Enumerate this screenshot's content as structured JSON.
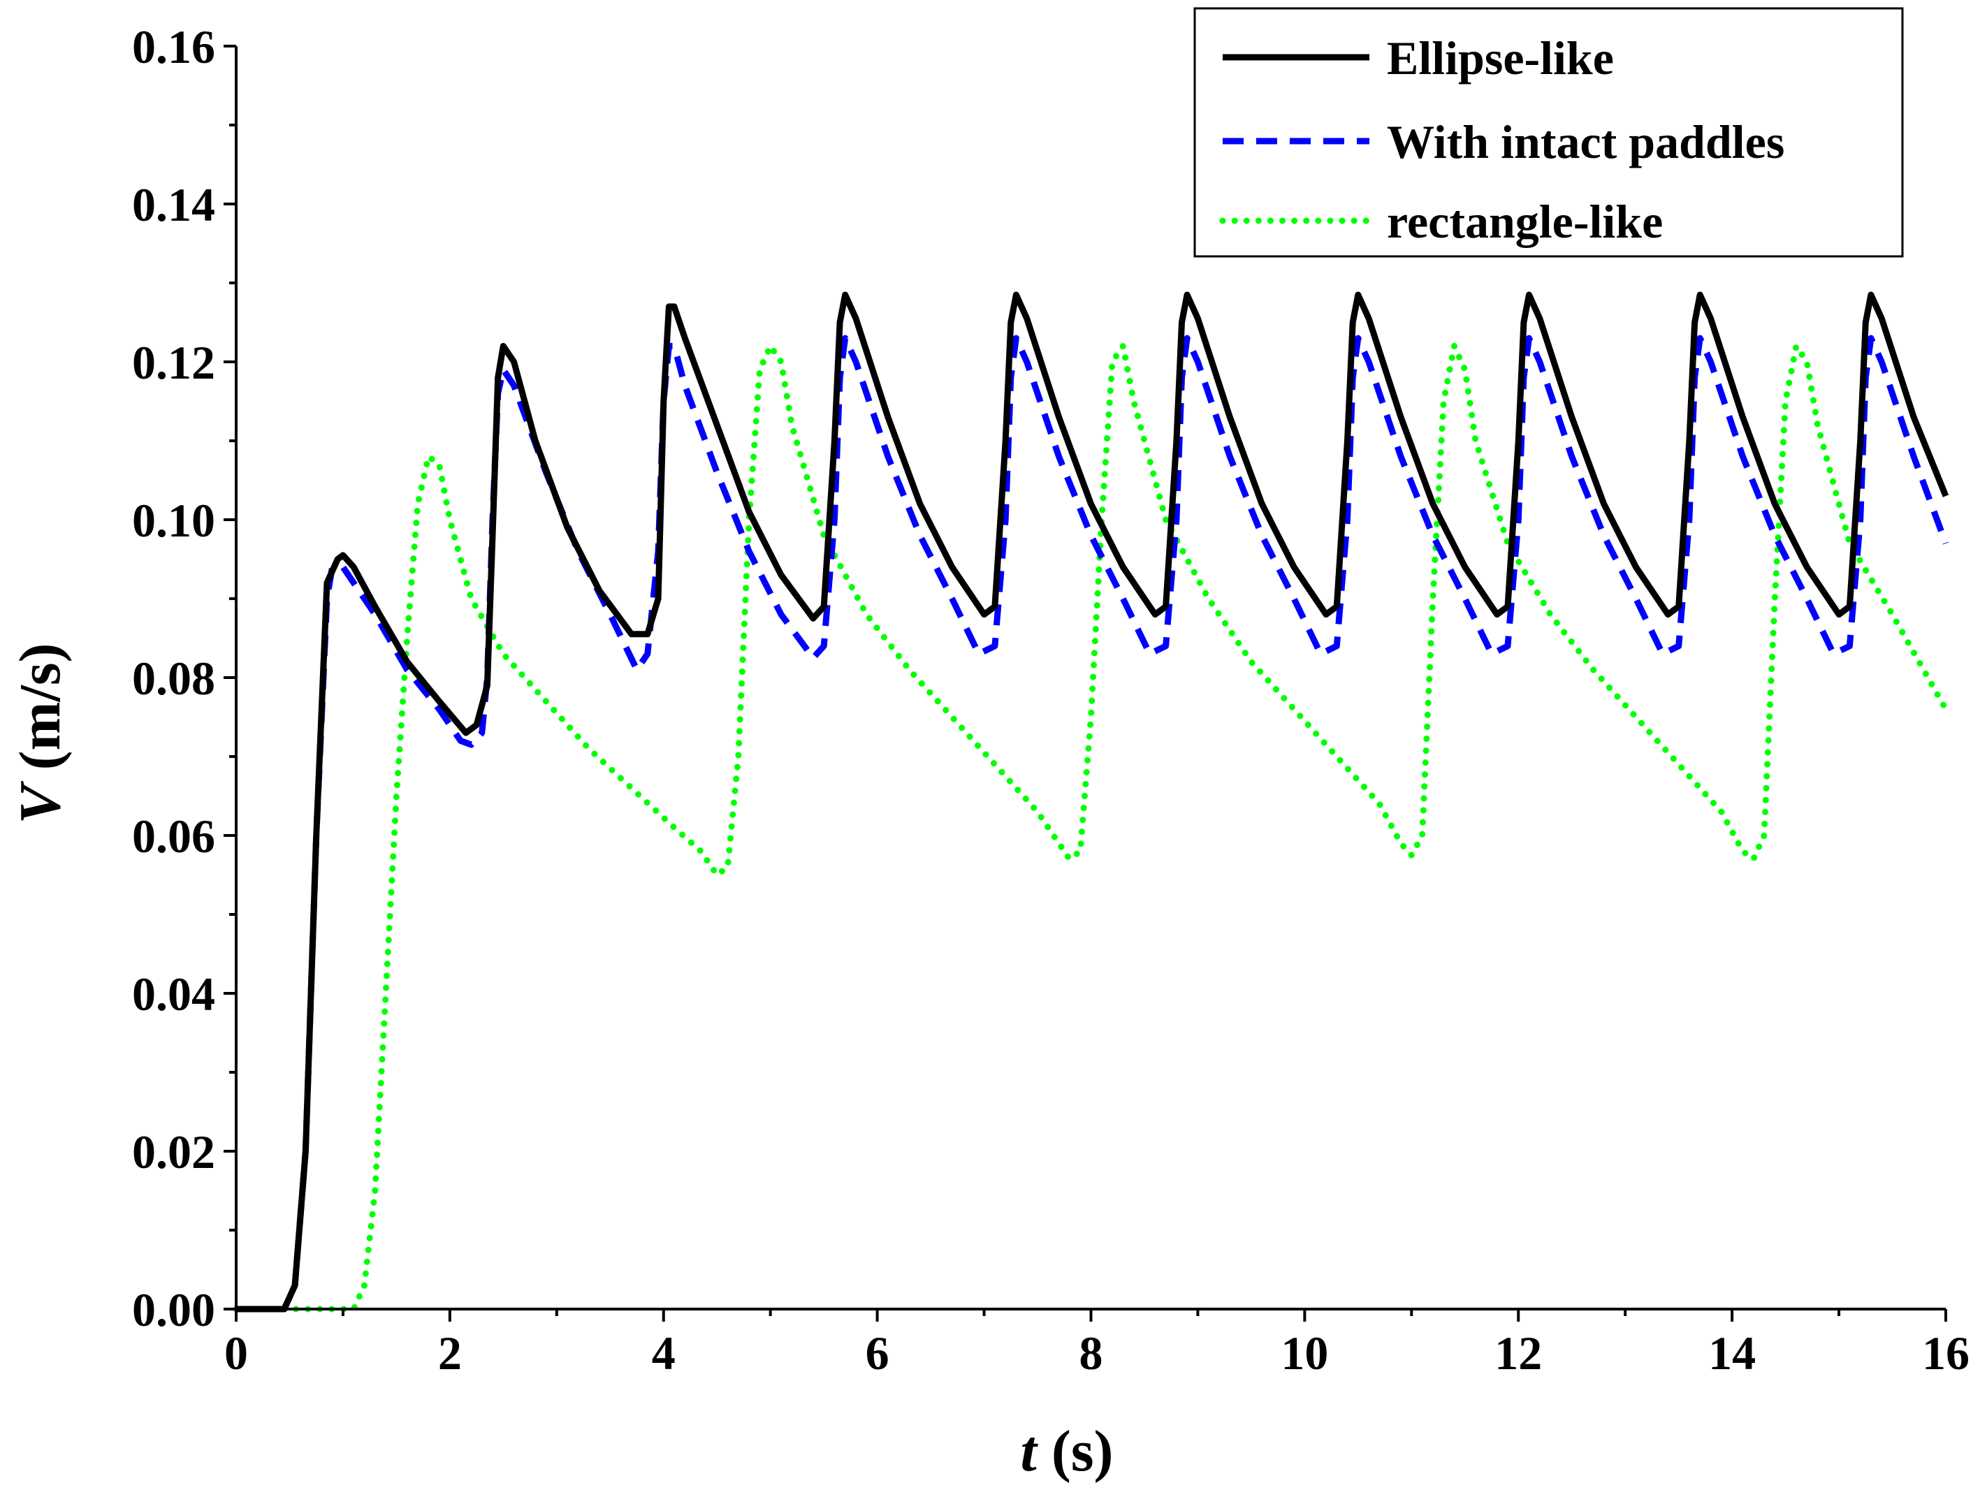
{
  "chart_data": {
    "type": "line",
    "title": "",
    "xlabel": {
      "symbol": "t",
      "unit": " (s)"
    },
    "ylabel": {
      "symbol": "V",
      "unit": " (m/s)"
    },
    "xlim": [
      0,
      16
    ],
    "ylim": [
      0,
      0.16
    ],
    "xticks": [
      "0",
      "2",
      "4",
      "6",
      "8",
      "10",
      "12",
      "14",
      "16"
    ],
    "xtick_values": [
      0,
      2,
      4,
      6,
      8,
      10,
      12,
      14,
      16
    ],
    "yticks": [
      "0.00",
      "0.02",
      "0.04",
      "0.06",
      "0.08",
      "0.10",
      "0.12",
      "0.14",
      "0.16"
    ],
    "ytick_values": [
      0,
      0.02,
      0.04,
      0.06,
      0.08,
      0.1,
      0.12,
      0.14,
      0.16
    ],
    "grid": false,
    "legend_position": "top-right",
    "series": [
      {
        "name": "Ellipse-like",
        "color": "#000000",
        "style": "solid",
        "x": [
          0,
          0.45,
          0.55,
          0.65,
          0.75,
          0.85,
          0.95,
          1.0,
          1.1,
          1.3,
          1.6,
          1.9,
          2.15,
          2.25,
          2.35,
          2.4,
          2.45,
          2.5,
          2.6,
          2.8,
          3.1,
          3.4,
          3.7,
          3.85,
          3.95,
          4.0,
          4.05,
          4.1,
          4.2,
          4.5,
          4.8,
          5.1,
          5.4,
          5.5,
          5.6,
          5.65,
          5.7,
          5.8,
          6.1,
          6.4,
          6.7,
          7.0,
          7.1,
          7.2,
          7.25,
          7.3,
          7.4,
          7.7,
          8.0,
          8.3,
          8.6,
          8.7,
          8.8,
          8.85,
          8.9,
          9.0,
          9.3,
          9.6,
          9.9,
          10.2,
          10.3,
          10.4,
          10.45,
          10.5,
          10.6,
          10.9,
          11.2,
          11.5,
          11.8,
          11.9,
          12.0,
          12.05,
          12.1,
          12.2,
          12.5,
          12.8,
          13.1,
          13.4,
          13.5,
          13.6,
          13.65,
          13.7,
          13.8,
          14.1,
          14.4,
          14.7,
          15.0,
          15.1,
          15.2,
          15.25,
          15.3,
          15.4,
          15.7,
          16.0
        ],
        "values": [
          0,
          0,
          0.003,
          0.02,
          0.06,
          0.092,
          0.095,
          0.0955,
          0.094,
          0.089,
          0.082,
          0.077,
          0.073,
          0.074,
          0.079,
          0.098,
          0.118,
          0.122,
          0.12,
          0.11,
          0.099,
          0.091,
          0.0855,
          0.0855,
          0.09,
          0.115,
          0.127,
          0.127,
          0.123,
          0.112,
          0.101,
          0.093,
          0.0875,
          0.089,
          0.11,
          0.125,
          0.1285,
          0.1255,
          0.113,
          0.102,
          0.094,
          0.088,
          0.089,
          0.11,
          0.125,
          0.1285,
          0.1255,
          0.113,
          0.102,
          0.094,
          0.088,
          0.089,
          0.11,
          0.125,
          0.1285,
          0.1255,
          0.113,
          0.102,
          0.094,
          0.088,
          0.089,
          0.11,
          0.125,
          0.1285,
          0.1255,
          0.113,
          0.102,
          0.094,
          0.088,
          0.089,
          0.11,
          0.125,
          0.1285,
          0.1255,
          0.113,
          0.102,
          0.094,
          0.088,
          0.089,
          0.11,
          0.125,
          0.1285,
          0.1255,
          0.113,
          0.102,
          0.094,
          0.088,
          0.089,
          0.11,
          0.125,
          0.1285,
          0.1255,
          0.113,
          0.103
        ]
      },
      {
        "name": "With intact paddles",
        "color": "#0000ff",
        "style": "dashed",
        "x": [
          0,
          0.45,
          0.55,
          0.65,
          0.75,
          0.85,
          0.9,
          1.0,
          1.3,
          1.6,
          1.9,
          2.1,
          2.2,
          2.3,
          2.35,
          2.4,
          2.45,
          2.5,
          2.6,
          2.9,
          3.2,
          3.5,
          3.75,
          3.85,
          3.95,
          4.0,
          4.05,
          4.1,
          4.2,
          4.5,
          4.8,
          5.1,
          5.4,
          5.5,
          5.6,
          5.65,
          5.7,
          5.8,
          6.1,
          6.4,
          6.7,
          6.95,
          7.1,
          7.2,
          7.25,
          7.3,
          7.4,
          7.7,
          8.0,
          8.3,
          8.55,
          8.7,
          8.8,
          8.85,
          8.9,
          9.0,
          9.3,
          9.6,
          9.9,
          10.15,
          10.3,
          10.4,
          10.45,
          10.5,
          10.6,
          10.9,
          11.2,
          11.5,
          11.75,
          11.9,
          12.0,
          12.05,
          12.1,
          12.2,
          12.5,
          12.8,
          13.1,
          13.35,
          13.5,
          13.6,
          13.65,
          13.7,
          13.8,
          14.1,
          14.4,
          14.7,
          14.95,
          15.1,
          15.2,
          15.25,
          15.3,
          15.4,
          15.7,
          16.0
        ],
        "values": [
          0,
          0,
          0.003,
          0.02,
          0.06,
          0.09,
          0.094,
          0.094,
          0.088,
          0.081,
          0.076,
          0.072,
          0.0715,
          0.073,
          0.08,
          0.1,
          0.116,
          0.119,
          0.117,
          0.106,
          0.096,
          0.088,
          0.081,
          0.083,
          0.096,
          0.115,
          0.122,
          0.122,
          0.117,
          0.106,
          0.096,
          0.088,
          0.0825,
          0.084,
          0.1,
          0.118,
          0.123,
          0.12,
          0.108,
          0.098,
          0.09,
          0.083,
          0.084,
          0.1,
          0.118,
          0.123,
          0.12,
          0.108,
          0.098,
          0.09,
          0.083,
          0.084,
          0.1,
          0.118,
          0.123,
          0.12,
          0.108,
          0.098,
          0.09,
          0.083,
          0.084,
          0.1,
          0.118,
          0.123,
          0.12,
          0.108,
          0.098,
          0.09,
          0.083,
          0.084,
          0.1,
          0.118,
          0.123,
          0.12,
          0.108,
          0.098,
          0.09,
          0.083,
          0.084,
          0.1,
          0.118,
          0.123,
          0.12,
          0.108,
          0.098,
          0.09,
          0.083,
          0.084,
          0.1,
          0.118,
          0.123,
          0.12,
          0.108,
          0.097
        ]
      },
      {
        "name": "rectangle-like",
        "color": "#00ff00",
        "style": "dotted",
        "x": [
          0,
          1.1,
          1.2,
          1.3,
          1.4,
          1.5,
          1.6,
          1.7,
          1.8,
          1.9,
          2.0,
          2.2,
          2.5,
          2.9,
          3.3,
          3.7,
          4.1,
          4.35,
          4.5,
          4.6,
          4.7,
          4.8,
          4.9,
          5.0,
          5.1,
          5.2,
          5.5,
          5.9,
          6.3,
          6.7,
          7.1,
          7.5,
          7.7,
          7.8,
          7.9,
          8.0,
          8.1,
          8.2,
          8.3,
          8.4,
          8.7,
          9.1,
          9.5,
          9.9,
          10.3,
          10.7,
          10.9,
          11.0,
          11.1,
          11.2,
          11.3,
          11.4,
          11.5,
          11.6,
          11.9,
          12.3,
          12.7,
          13.1,
          13.5,
          13.9,
          14.1,
          14.2,
          14.3,
          14.4,
          14.5,
          14.6,
          14.7,
          14.8,
          15.1,
          15.5,
          16.0
        ],
        "values": [
          0,
          0,
          0.003,
          0.015,
          0.04,
          0.065,
          0.085,
          0.102,
          0.108,
          0.107,
          0.1,
          0.09,
          0.083,
          0.077,
          0.071,
          0.066,
          0.061,
          0.058,
          0.055,
          0.056,
          0.07,
          0.1,
          0.119,
          0.122,
          0.12,
          0.112,
          0.098,
          0.088,
          0.081,
          0.075,
          0.069,
          0.063,
          0.059,
          0.057,
          0.058,
          0.075,
          0.1,
          0.12,
          0.122,
          0.115,
          0.1,
          0.09,
          0.082,
          0.076,
          0.07,
          0.064,
          0.059,
          0.0575,
          0.06,
          0.09,
          0.115,
          0.122,
          0.119,
          0.11,
          0.097,
          0.088,
          0.081,
          0.075,
          0.069,
          0.063,
          0.058,
          0.057,
          0.06,
          0.09,
          0.115,
          0.122,
          0.12,
          0.112,
          0.097,
          0.088,
          0.076
        ]
      }
    ]
  }
}
